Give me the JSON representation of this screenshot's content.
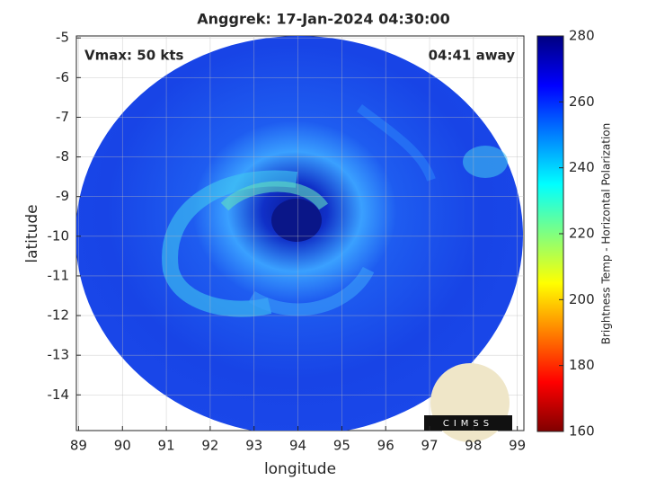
{
  "chart_data": {
    "type": "map",
    "title": "Anggrek: 17-Jan-2024 04:30:00",
    "xlabel": "longitude",
    "ylabel": "latitude",
    "xlim": [
      88.95,
      99.15
    ],
    "ylim": [
      -4.95,
      -14.9
    ],
    "xticks": [
      89,
      90,
      91,
      92,
      93,
      94,
      95,
      96,
      97,
      98,
      99
    ],
    "yticks": [
      -5,
      -6,
      -7,
      -8,
      -9,
      -10,
      -11,
      -12,
      -13,
      -14
    ],
    "grid": true,
    "annotations": [
      "Vmax: 50 kts",
      "04:41 away"
    ],
    "logo": "CIMSS",
    "colorbar": {
      "label": "Brightness Temp - Horizontal Polarization",
      "lim": [
        160,
        280
      ],
      "ticks": [
        160,
        180,
        200,
        220,
        240,
        260,
        280
      ],
      "colormap": "jet"
    }
  }
}
